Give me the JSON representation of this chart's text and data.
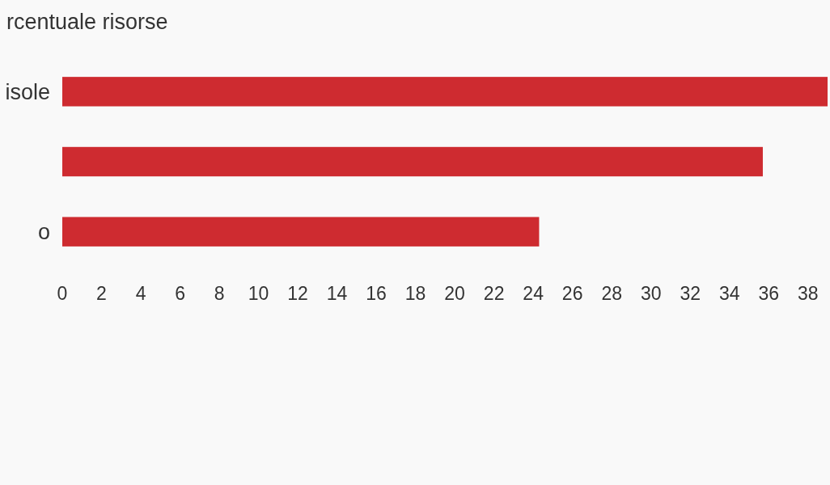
{
  "chart_data": {
    "type": "bar",
    "title": "rcentuale risorse",
    "orientation": "horizontal",
    "categories": [
      "isole",
      null,
      "o"
    ],
    "values": [
      39,
      35.7,
      24.3
    ],
    "color": "#ce2b30",
    "xlim": [
      0,
      39
    ],
    "xticks": [
      0,
      2,
      4,
      6,
      8,
      10,
      12,
      14,
      16,
      18,
      20,
      22,
      24,
      26,
      28,
      30,
      32,
      34,
      36,
      38
    ],
    "grid": false
  }
}
